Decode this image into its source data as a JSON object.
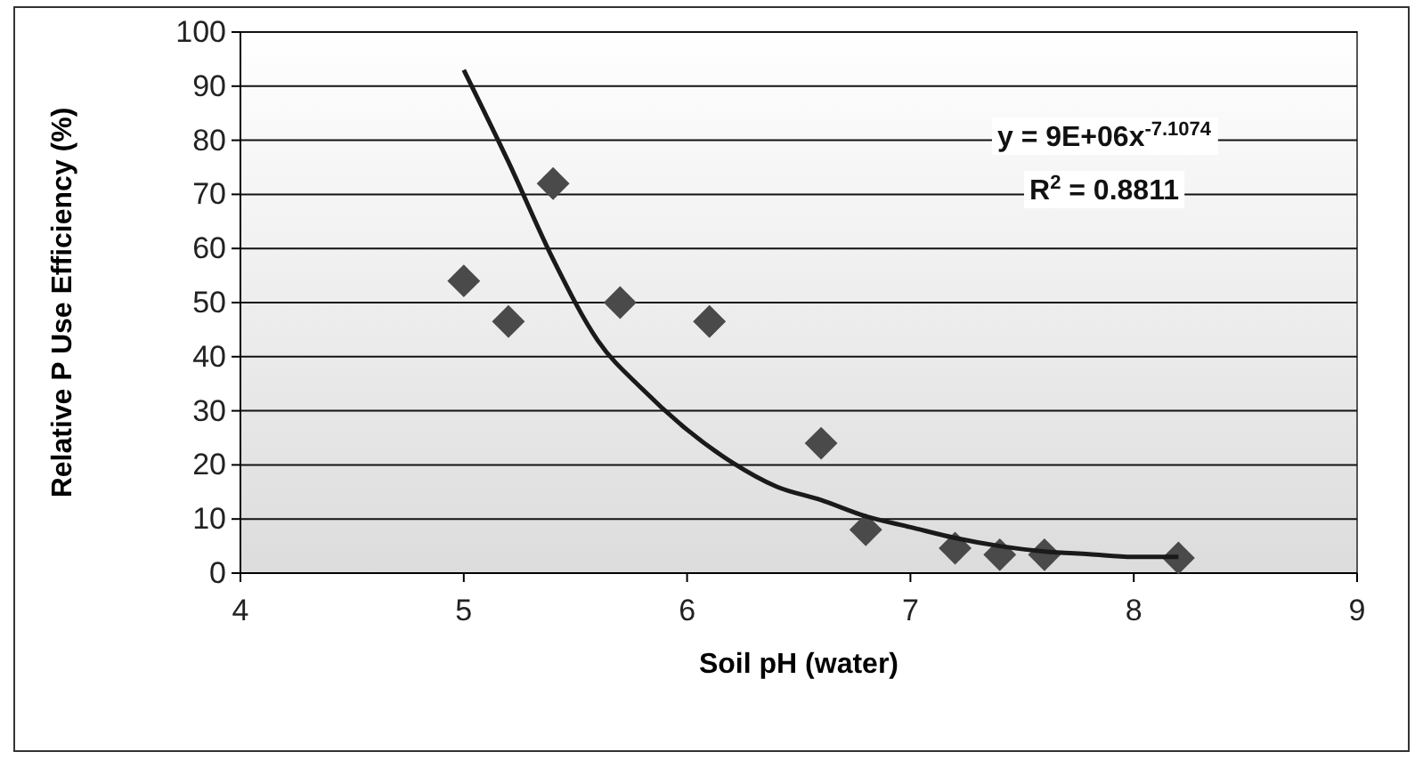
{
  "chart_data": {
    "type": "scatter",
    "xlabel": "Soil pH (water)",
    "ylabel": "Relative P Use Efficiency (%)",
    "annotations": [
      "y = 9E+06x$^{-7.1074}$",
      "R$^{2}$ = 0.8811"
    ],
    "series": [
      {
        "color": "#4a4a4a",
        "marker": "diamond",
        "x": [
          5.0,
          5.2,
          5.4,
          5.7,
          6.1,
          6.6,
          6.8,
          7.2,
          7.4,
          7.6,
          8.2
        ],
        "values": [
          54,
          46.5,
          72,
          50,
          46.5,
          24,
          8,
          4.6,
          3.4,
          3.4,
          2.8
        ]
      },
      {
        "type": "line",
        "color": "#1a1a1a",
        "marker": "none",
        "line_style": "solid",
        "x": [
          5.0,
          5.2,
          5.4,
          5.6,
          5.8,
          6.0,
          6.2,
          6.4,
          6.6,
          6.8,
          7.0,
          7.2,
          7.4,
          7.6,
          7.8,
          8.0,
          8.2
        ],
        "values": [
          93,
          76,
          58,
          43,
          34,
          26.5,
          20.5,
          16,
          13.5,
          10.5,
          8.5,
          6.5,
          5,
          4,
          3.5,
          3,
          3
        ]
      }
    ],
    "xlim": [
      4,
      9
    ],
    "xticks": [
      4,
      5,
      6,
      7,
      8,
      9
    ],
    "ylim": [
      0,
      100
    ],
    "yticks": [
      0,
      10,
      20,
      30,
      40,
      50,
      60,
      70,
      80,
      90,
      100
    ],
    "grid": "y"
  }
}
